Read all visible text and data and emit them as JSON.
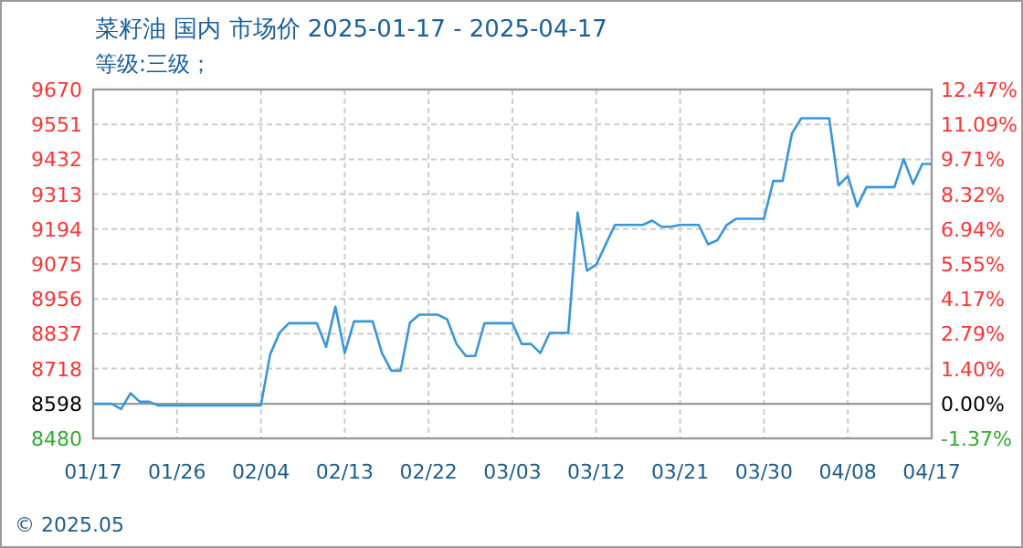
{
  "chart_data": {
    "type": "line",
    "title": "菜籽油 国内 市场价 2025-01-17 - 2025-04-17",
    "subtitle": "等级:三级；",
    "annotations": [
      "© 2025.05"
    ],
    "x": [
      "2025-01-17",
      "2025-01-19",
      "2025-01-20",
      "2025-01-21",
      "2025-01-22",
      "2025-01-23",
      "2025-01-24",
      "2025-02-04",
      "2025-02-05",
      "2025-02-06",
      "2025-02-07",
      "2025-02-10",
      "2025-02-11",
      "2025-02-12",
      "2025-02-13",
      "2025-02-14",
      "2025-02-16",
      "2025-02-17",
      "2025-02-18",
      "2025-02-19",
      "2025-02-20",
      "2025-02-21",
      "2025-02-23",
      "2025-02-24",
      "2025-02-25",
      "2025-02-26",
      "2025-02-27",
      "2025-02-28",
      "2025-03-03",
      "2025-03-04",
      "2025-03-05",
      "2025-03-06",
      "2025-03-07",
      "2025-03-09",
      "2025-03-10",
      "2025-03-11",
      "2025-03-12",
      "2025-03-14",
      "2025-03-17",
      "2025-03-18",
      "2025-03-19",
      "2025-03-20",
      "2025-03-21",
      "2025-03-23",
      "2025-03-24",
      "2025-03-25",
      "2025-03-26",
      "2025-03-27",
      "2025-03-30",
      "2025-03-31",
      "2025-04-01",
      "2025-04-02",
      "2025-04-03",
      "2025-04-06",
      "2025-04-07",
      "2025-04-08",
      "2025-04-09",
      "2025-04-10",
      "2025-04-13",
      "2025-04-14",
      "2025-04-15",
      "2025-04-16",
      "2025-04-17"
    ],
    "series": [
      {
        "color": "#3a96d8",
        "values": [
          8598,
          8598,
          8580,
          8634,
          8605,
          8605,
          8592,
          8592,
          8767,
          8840,
          8873,
          8873,
          8792,
          8929,
          8771,
          8879,
          8879,
          8771,
          8711,
          8711,
          8875,
          8902,
          8902,
          8886,
          8802,
          8761,
          8761,
          8873,
          8873,
          8802,
          8802,
          8771,
          8840,
          8840,
          9250,
          9052,
          9073,
          9208,
          9208,
          9223,
          9202,
          9202,
          9208,
          9208,
          9142,
          9156,
          9208,
          9229,
          9229,
          9358,
          9358,
          9520,
          9572,
          9572,
          9343,
          9375,
          9271,
          9337,
          9337,
          9433,
          9348,
          9416,
          9416
        ]
      }
    ],
    "xlim": [
      "2025-01-17",
      "2025-04-17"
    ],
    "xticks": [
      {
        "value": "2025-01-17",
        "label": "01/17"
      },
      {
        "value": "2025-01-26",
        "label": "01/26"
      },
      {
        "value": "2025-02-04",
        "label": "02/04"
      },
      {
        "value": "2025-02-13",
        "label": "02/13"
      },
      {
        "value": "2025-02-22",
        "label": "02/22"
      },
      {
        "value": "2025-03-03",
        "label": "03/03"
      },
      {
        "value": "2025-03-12",
        "label": "03/12"
      },
      {
        "value": "2025-03-21",
        "label": "03/21"
      },
      {
        "value": "2025-03-30",
        "label": "03/30"
      },
      {
        "value": "2025-04-08",
        "label": "04/08"
      },
      {
        "value": "2025-04-17",
        "label": "04/17"
      }
    ],
    "ylim": [
      8480,
      9670
    ],
    "yticks": [
      8480,
      8598,
      8718,
      8837,
      8956,
      9075,
      9194,
      9313,
      9432,
      9551,
      9670
    ],
    "y2lim": [
      -1.37,
      12.47
    ],
    "y2ticks": [
      {
        "value": -1.37,
        "label": "-1.37%"
      },
      {
        "value": 0,
        "label": "0.00%"
      },
      {
        "value": 1.4,
        "label": "1.40%"
      },
      {
        "value": 2.79,
        "label": "2.79%"
      },
      {
        "value": 4.17,
        "label": "4.17%"
      },
      {
        "value": 5.55,
        "label": "5.55%"
      },
      {
        "value": 6.94,
        "label": "6.94%"
      },
      {
        "value": 8.32,
        "label": "8.32%"
      },
      {
        "value": 9.71,
        "label": "9.71%"
      },
      {
        "value": 11.09,
        "label": "11.09%"
      },
      {
        "value": 12.47,
        "label": "12.47%"
      }
    ],
    "ref_lines": [
      {
        "axis": "y",
        "value": 8598,
        "color": "#999999"
      }
    ],
    "grid": true,
    "marker": "none",
    "line_style": "solid"
  }
}
